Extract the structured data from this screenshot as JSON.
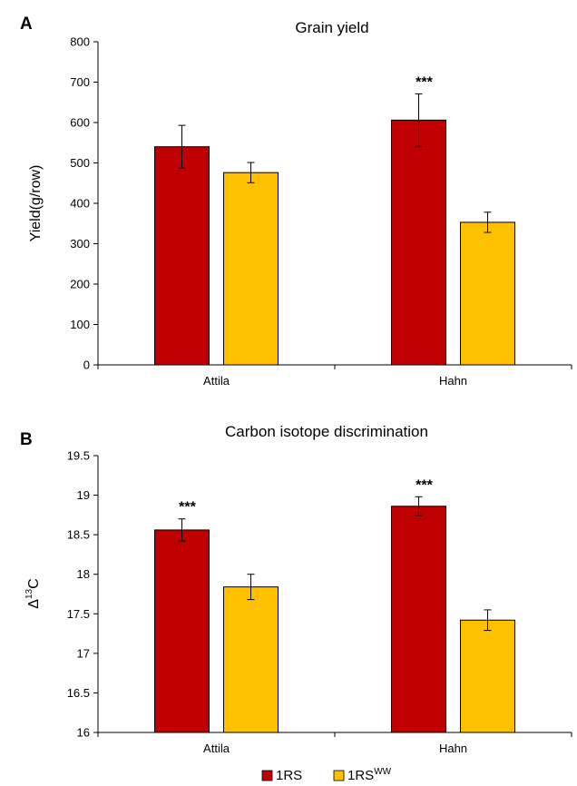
{
  "legend": {
    "items": [
      {
        "label": "1RS",
        "superscript": "",
        "color": "#c00000"
      },
      {
        "label": "1RS",
        "superscript": "WW",
        "color": "#ffc000"
      }
    ]
  },
  "chart_data": [
    {
      "panel": "A",
      "type": "bar",
      "title": "Grain yield",
      "xlabel": "",
      "ylabel": "Yield(g/row)",
      "ylim": [
        0,
        800
      ],
      "yticks": [
        0,
        100,
        200,
        300,
        400,
        500,
        600,
        700,
        800
      ],
      "categories": [
        "Attila",
        "Hahn"
      ],
      "series": [
        {
          "name": "1RS",
          "color": "#c00000",
          "values": [
            540,
            606
          ],
          "errors": [
            53,
            65
          ]
        },
        {
          "name": "1RSWW",
          "color": "#ffc000",
          "values": [
            476,
            353
          ],
          "errors": [
            25,
            25
          ]
        }
      ],
      "annotations": [
        {
          "text": "***",
          "category": "Hahn"
        }
      ]
    },
    {
      "panel": "B",
      "type": "bar",
      "title": "Carbon isotope discrimination",
      "xlabel": "",
      "ylabel": "Δ13C",
      "ylim": [
        16,
        19.5
      ],
      "yticks": [
        16,
        16.5,
        17,
        17.5,
        18,
        18.5,
        19,
        19.5
      ],
      "categories": [
        "Attila",
        "Hahn"
      ],
      "series": [
        {
          "name": "1RS",
          "color": "#c00000",
          "values": [
            18.56,
            18.86
          ],
          "errors": [
            0.14,
            0.12
          ]
        },
        {
          "name": "1RSWW",
          "color": "#ffc000",
          "values": [
            17.84,
            17.42
          ],
          "errors": [
            0.16,
            0.13
          ]
        }
      ],
      "annotations": [
        {
          "text": "***",
          "category": "Attila"
        },
        {
          "text": "***",
          "category": "Hahn"
        }
      ]
    }
  ]
}
